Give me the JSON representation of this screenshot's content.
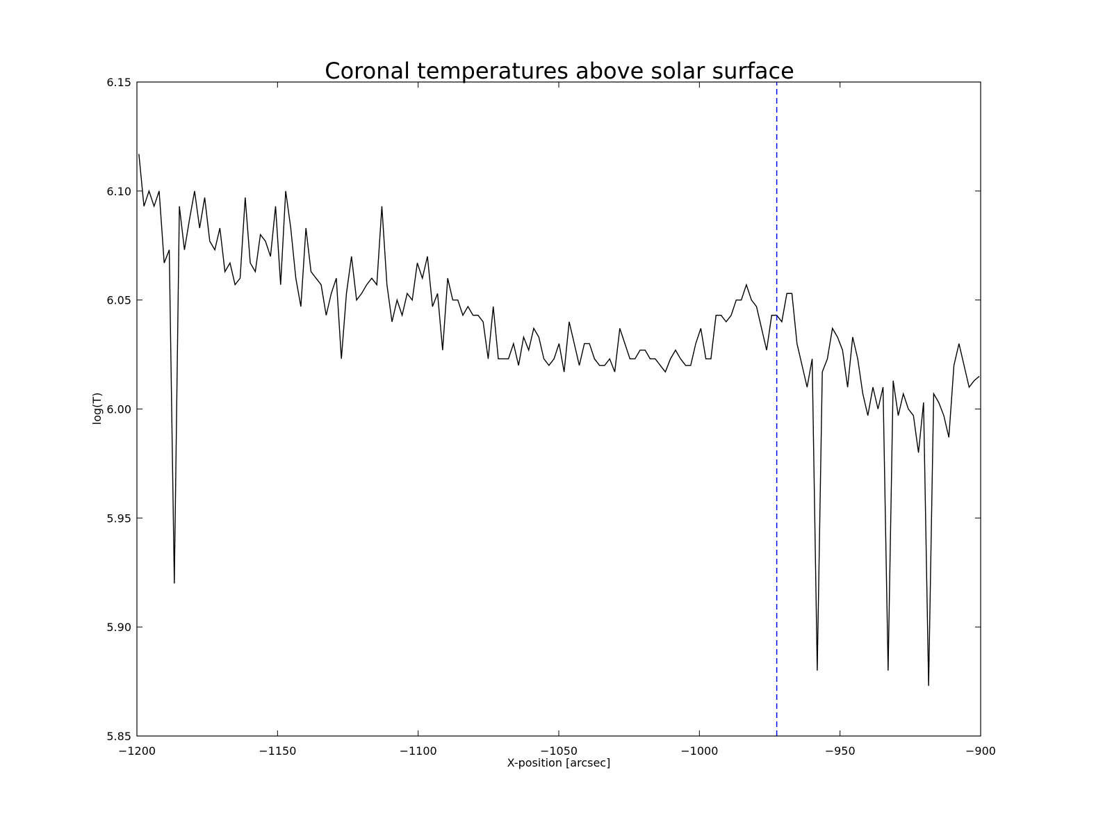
{
  "chart_data": {
    "type": "line",
    "title": "Coronal temperatures above solar surface",
    "xlabel": "X-position [arcsec]",
    "ylabel": "log(T)",
    "xlim": [
      -1200,
      -900
    ],
    "ylim": [
      5.85,
      6.15
    ],
    "xticks": [
      -1200,
      -1150,
      -1100,
      -1050,
      -1000,
      -950,
      -900
    ],
    "xtick_labels": [
      "−1200",
      "−1150",
      "−1100",
      "−1050",
      "−1000",
      "−950",
      "−900"
    ],
    "yticks": [
      5.85,
      5.9,
      5.95,
      6.0,
      6.05,
      6.1,
      6.15
    ],
    "ytick_labels": [
      "5.85",
      "5.90",
      "5.95",
      "6.00",
      "6.05",
      "6.10",
      "6.15"
    ],
    "grid": false,
    "series": [
      {
        "color": "#000000",
        "style": "solid",
        "x": [
          -1199.3,
          -1197.5,
          -1195.7,
          -1193.9,
          -1192.1,
          -1190.3,
          -1188.5,
          -1186.7,
          -1184.9,
          -1183.1,
          -1181.3,
          -1179.5,
          -1177.7,
          -1175.9,
          -1174.1,
          -1172.3,
          -1170.5,
          -1168.7,
          -1166.9,
          -1165.1,
          -1163.3,
          -1161.5,
          -1159.7,
          -1157.9,
          -1156.1,
          -1154.3,
          -1152.5,
          -1150.7,
          -1148.9,
          -1147.1,
          -1145.3,
          -1143.5,
          -1141.7,
          -1139.9,
          -1138.1,
          -1136.3,
          -1134.5,
          -1132.7,
          -1130.9,
          -1129.1,
          -1127.3,
          -1125.5,
          -1123.7,
          -1121.9,
          -1120.1,
          -1118.3,
          -1116.5,
          -1114.7,
          -1112.9,
          -1111.1,
          -1109.3,
          -1107.5,
          -1105.7,
          -1103.9,
          -1102.1,
          -1100.3,
          -1098.5,
          -1096.7,
          -1094.9,
          -1093.1,
          -1091.3,
          -1089.5,
          -1087.7,
          -1085.9,
          -1084.1,
          -1082.3,
          -1080.5,
          -1078.7,
          -1076.9,
          -1075.1,
          -1073.3,
          -1071.5,
          -1069.7,
          -1067.9,
          -1066.1,
          -1064.3,
          -1062.5,
          -1060.7,
          -1058.9,
          -1057.1,
          -1055.3,
          -1053.5,
          -1051.7,
          -1049.9,
          -1048.1,
          -1046.3,
          -1044.5,
          -1042.7,
          -1040.9,
          -1039.1,
          -1037.3,
          -1035.5,
          -1033.7,
          -1031.9,
          -1030.1,
          -1028.3,
          -1026.5,
          -1024.7,
          -1022.9,
          -1021.1,
          -1019.3,
          -1017.5,
          -1015.7,
          -1013.9,
          -1012.1,
          -1010.3,
          -1008.5,
          -1006.7,
          -1004.9,
          -1003.1,
          -1001.3,
          -999.5,
          -997.7,
          -995.9,
          -994.1,
          -992.3,
          -990.5,
          -988.7,
          -986.9,
          -985.1,
          -983.3,
          -981.5,
          -979.7,
          -977.9,
          -976.1,
          -974.3,
          -972.5,
          -970.7,
          -968.9,
          -967.1,
          -965.3,
          -963.5,
          -961.7,
          -959.9,
          -958.1,
          -956.3,
          -954.5,
          -952.7,
          -950.9,
          -949.1,
          -947.3,
          -945.5,
          -943.7,
          -941.9,
          -940.1,
          -938.3,
          -936.5,
          -934.7,
          -932.9,
          -931.1,
          -929.3,
          -927.5,
          -925.7,
          -923.9,
          -922.1,
          -920.3,
          -918.5,
          -916.7,
          -914.9,
          -913.1,
          -911.3,
          -909.5,
          -907.7,
          -905.9,
          -904.1,
          -902.3,
          -900.5
        ],
        "y": [
          6.117,
          6.093,
          6.1,
          6.093,
          6.1,
          6.067,
          6.073,
          5.92,
          6.093,
          6.073,
          6.087,
          6.1,
          6.083,
          6.097,
          6.077,
          6.073,
          6.083,
          6.063,
          6.067,
          6.057,
          6.06,
          6.097,
          6.067,
          6.063,
          6.08,
          6.077,
          6.07,
          6.093,
          6.057,
          6.1,
          6.083,
          6.06,
          6.047,
          6.083,
          6.063,
          6.06,
          6.057,
          6.043,
          6.053,
          6.06,
          6.023,
          6.053,
          6.07,
          6.05,
          6.053,
          6.057,
          6.06,
          6.057,
          6.093,
          6.057,
          6.04,
          6.05,
          6.043,
          6.053,
          6.05,
          6.067,
          6.06,
          6.07,
          6.047,
          6.053,
          6.027,
          6.06,
          6.05,
          6.05,
          6.043,
          6.047,
          6.043,
          6.043,
          6.04,
          6.023,
          6.047,
          6.023,
          6.023,
          6.023,
          6.03,
          6.02,
          6.033,
          6.027,
          6.037,
          6.033,
          6.023,
          6.02,
          6.023,
          6.03,
          6.017,
          6.04,
          6.03,
          6.02,
          6.03,
          6.03,
          6.023,
          6.02,
          6.02,
          6.023,
          6.017,
          6.037,
          6.03,
          6.023,
          6.023,
          6.027,
          6.027,
          6.023,
          6.023,
          6.02,
          6.017,
          6.023,
          6.027,
          6.023,
          6.02,
          6.02,
          6.03,
          6.037,
          6.023,
          6.023,
          6.043,
          6.043,
          6.04,
          6.043,
          6.05,
          6.05,
          6.057,
          6.05,
          6.047,
          6.037,
          6.027,
          6.043,
          6.043,
          6.04,
          6.053,
          6.053,
          6.03,
          6.02,
          6.01,
          6.023,
          5.88,
          6.017,
          6.023,
          6.037,
          6.033,
          6.027,
          6.01,
          6.033,
          6.023,
          6.007,
          5.997,
          6.01,
          6.0,
          6.01,
          5.88,
          6.013,
          5.997,
          6.007,
          6.0,
          5.997,
          5.98,
          6.003,
          5.873,
          6.007,
          6.003,
          5.997,
          5.987,
          6.02,
          6.03,
          6.02,
          6.01,
          6.013,
          6.015
        ]
      },
      {
        "color": "#0000ff",
        "style": "dashed",
        "x": [
          -972.5,
          -972.5
        ],
        "y": [
          5.85,
          6.15
        ]
      }
    ]
  }
}
